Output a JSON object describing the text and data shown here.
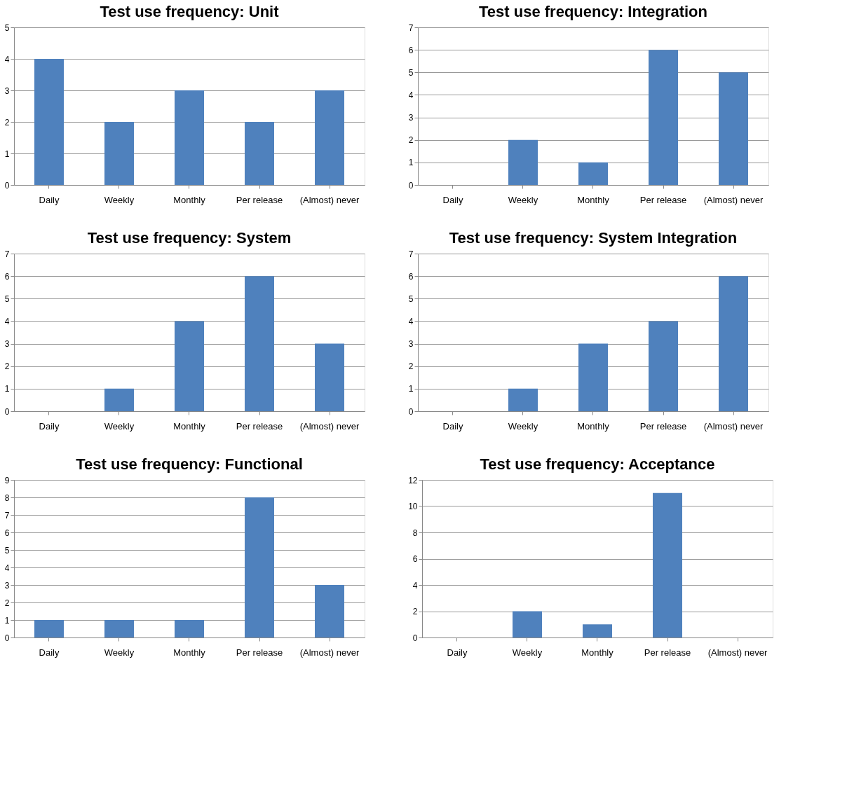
{
  "chart_data": [
    {
      "type": "bar",
      "title": "Test use frequency: Unit",
      "categories": [
        "Daily",
        "Weekly",
        "Monthly",
        "Per release",
        "(Almost) never"
      ],
      "values": [
        4,
        2,
        3,
        2,
        3
      ],
      "color": "#4f81bd",
      "ylim": [
        0,
        5
      ],
      "yticks": [
        0,
        1,
        2,
        3,
        4,
        5
      ],
      "grid": "y"
    },
    {
      "type": "bar",
      "title": "Test use frequency: Integration",
      "categories": [
        "Daily",
        "Weekly",
        "Monthly",
        "Per release",
        "(Almost) never"
      ],
      "values": [
        0,
        2,
        1,
        6,
        5
      ],
      "color": "#4f81bd",
      "ylim": [
        0,
        7
      ],
      "yticks": [
        0,
        1,
        2,
        3,
        4,
        5,
        6,
        7
      ],
      "grid": "y"
    },
    {
      "type": "bar",
      "title": "Test use frequency: System",
      "categories": [
        "Daily",
        "Weekly",
        "Monthly",
        "Per release",
        "(Almost) never"
      ],
      "values": [
        0,
        1,
        4,
        6,
        3
      ],
      "color": "#4f81bd",
      "ylim": [
        0,
        7
      ],
      "yticks": [
        0,
        1,
        2,
        3,
        4,
        5,
        6,
        7
      ],
      "grid": "y"
    },
    {
      "type": "bar",
      "title": "Test use frequency: System Integration",
      "categories": [
        "Daily",
        "Weekly",
        "Monthly",
        "Per release",
        "(Almost) never"
      ],
      "values": [
        0,
        1,
        3,
        4,
        6
      ],
      "color": "#4f81bd",
      "ylim": [
        0,
        7
      ],
      "yticks": [
        0,
        1,
        2,
        3,
        4,
        5,
        6,
        7
      ],
      "grid": "y"
    },
    {
      "type": "bar",
      "title": "Test use frequency: Functional",
      "categories": [
        "Daily",
        "Weekly",
        "Monthly",
        "Per release",
        "(Almost) never"
      ],
      "values": [
        1,
        1,
        1,
        8,
        3
      ],
      "color": "#4f81bd",
      "ylim": [
        0,
        9
      ],
      "yticks": [
        0,
        1,
        2,
        3,
        4,
        5,
        6,
        7,
        8,
        9
      ],
      "grid": "y"
    },
    {
      "type": "bar",
      "title": "Test use frequency: Acceptance",
      "categories": [
        "Daily",
        "Weekly",
        "Monthly",
        "Per release",
        "(Almost) never"
      ],
      "values": [
        0,
        2,
        1,
        11,
        0
      ],
      "color": "#4f81bd",
      "ylim": [
        0,
        12
      ],
      "yticks": [
        0,
        2,
        4,
        6,
        8,
        10,
        12
      ],
      "grid": "y"
    }
  ]
}
